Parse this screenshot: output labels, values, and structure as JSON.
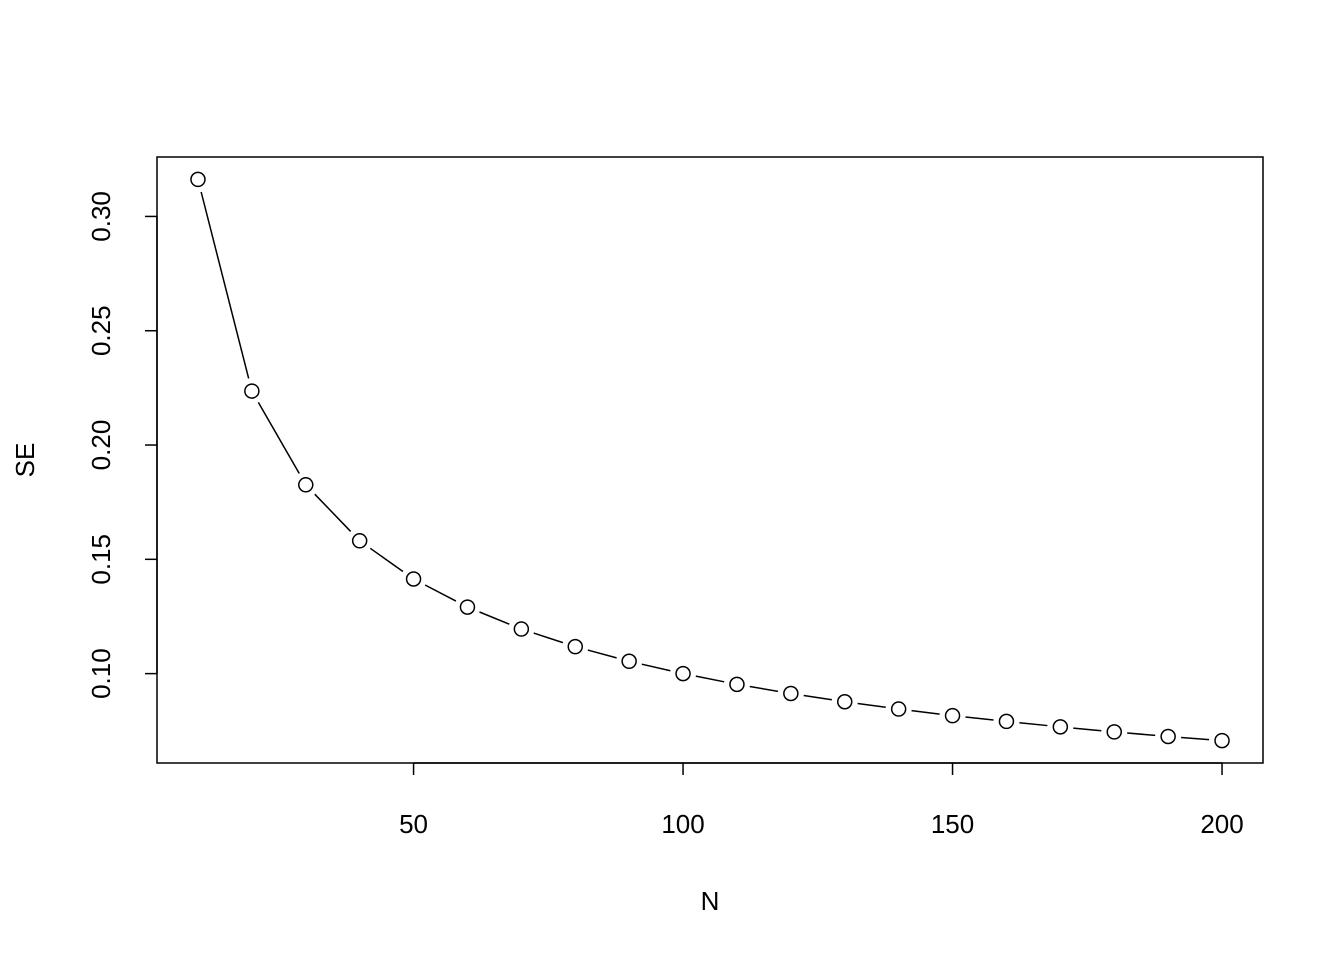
{
  "chart_data": {
    "type": "line",
    "style": "points-and-lines",
    "title": "",
    "xlabel": "N",
    "ylabel": "SE",
    "xlim": [
      2.4,
      207.6
    ],
    "ylim": [
      0.0609,
      0.326
    ],
    "xticks": [
      50,
      100,
      150,
      200
    ],
    "xtick_labels": [
      "50",
      "100",
      "150",
      "200"
    ],
    "yticks": [
      0.1,
      0.15,
      0.2,
      0.25,
      0.3
    ],
    "ytick_labels": [
      "0.10",
      "0.15",
      "0.20",
      "0.25",
      "0.30"
    ],
    "grid": false,
    "x": [
      10,
      20,
      30,
      40,
      50,
      60,
      70,
      80,
      90,
      100,
      110,
      120,
      130,
      140,
      150,
      160,
      170,
      180,
      190,
      200
    ],
    "y": [
      0.3162,
      0.2236,
      0.1826,
      0.1581,
      0.1414,
      0.1291,
      0.1195,
      0.1118,
      0.1054,
      0.1,
      0.0953,
      0.0913,
      0.0877,
      0.0845,
      0.0816,
      0.0791,
      0.0767,
      0.0745,
      0.0725,
      0.0707
    ],
    "colors": {
      "line": "#000000",
      "marker_fill": "#ffffff"
    }
  }
}
